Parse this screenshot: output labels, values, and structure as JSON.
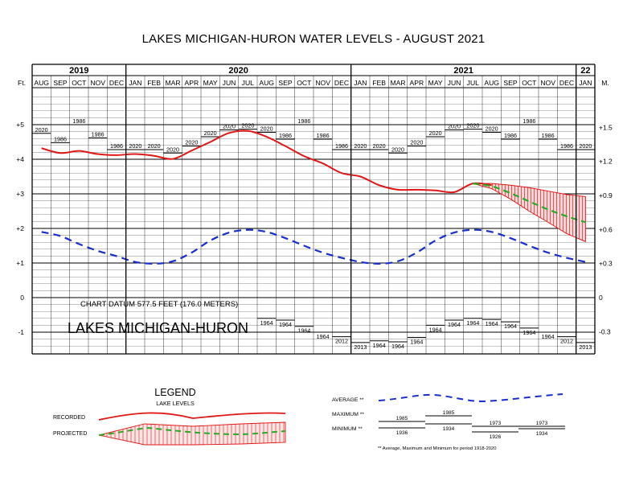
{
  "title": "LAKES MICHIGAN-HURON WATER LEVELS - AUGUST 2021",
  "years": [
    "2019",
    "2020",
    "2021",
    "22"
  ],
  "months": [
    "AUG",
    "SEP",
    "OCT",
    "NOV",
    "DEC",
    "JAN",
    "FEB",
    "MAR",
    "APR",
    "MAY",
    "JUN",
    "JUL",
    "AUG",
    "SEP",
    "OCT",
    "NOV",
    "DEC",
    "JAN",
    "FEB",
    "MAR",
    "APR",
    "MAY",
    "JUN",
    "JUL",
    "AUG",
    "SEP",
    "OCT",
    "NOV",
    "DEC",
    "JAN"
  ],
  "ft_label": "Ft.",
  "m_label": "M.",
  "ft_ticks": [
    {
      "v": 5,
      "label": "+5"
    },
    {
      "v": 4,
      "label": "+4"
    },
    {
      "v": 3,
      "label": "+3"
    },
    {
      "v": 2,
      "label": "+2"
    },
    {
      "v": 1,
      "label": "+1"
    },
    {
      "v": 0,
      "label": "0"
    },
    {
      "v": -1,
      "label": "-1"
    }
  ],
  "m_ticks": [
    {
      "v": 1.5,
      "label": "+1.5"
    },
    {
      "v": 1.2,
      "label": "+1.2"
    },
    {
      "v": 0.9,
      "label": "+0.9"
    },
    {
      "v": 0.6,
      "label": "+0.6"
    },
    {
      "v": 0.3,
      "label": "+0.3"
    },
    {
      "v": 0,
      "label": "0"
    },
    {
      "v": -0.3,
      "label": "-0.3"
    }
  ],
  "datum_text": "CHART DATUM  577.5 FEET (176.0 METERS)",
  "lake_name": "LAKES MICHIGAN-HURON",
  "chart_data": {
    "type": "line",
    "title": "LAKES MICHIGAN-HURON WATER LEVELS - AUGUST 2021",
    "x_unit": "month (Aug 2019 - Jan 2022)",
    "ylabel_left": "Ft.",
    "ylabel_right": "M.",
    "ylim": [
      -1.4,
      6.4
    ],
    "grid": true,
    "recorded": {
      "x": [
        0,
        1,
        2,
        3,
        4,
        5,
        6,
        7,
        8,
        9,
        10,
        11,
        12,
        13,
        14,
        15,
        16,
        17,
        18,
        19,
        20,
        21,
        22,
        23,
        24
      ],
      "y": [
        4.32,
        4.18,
        4.24,
        4.15,
        4.12,
        4.15,
        4.1,
        4.01,
        4.25,
        4.5,
        4.76,
        4.82,
        4.65,
        4.38,
        4.09,
        3.88,
        3.6,
        3.5,
        3.25,
        3.12,
        3.12,
        3.1,
        3.05,
        3.3,
        3.25
      ]
    },
    "projected": {
      "x": [
        23,
        24,
        25,
        26,
        27,
        28,
        29
      ],
      "y": [
        3.3,
        3.22,
        3.02,
        2.78,
        2.55,
        2.35,
        2.18
      ],
      "upper": [
        3.3,
        3.3,
        3.25,
        3.18,
        3.08,
        2.98,
        2.92
      ],
      "lower": [
        3.3,
        3.15,
        2.85,
        2.5,
        2.18,
        1.85,
        1.62
      ]
    },
    "average": {
      "x": [
        0,
        1,
        2,
        3,
        4,
        5,
        6,
        7,
        8,
        9,
        10,
        11,
        12,
        13,
        14,
        15,
        16,
        17,
        18,
        19,
        20,
        21,
        22,
        23,
        24,
        25,
        26,
        27,
        28,
        29
      ],
      "y": [
        1.9,
        1.78,
        1.55,
        1.35,
        1.2,
        1.03,
        0.98,
        1.05,
        1.3,
        1.65,
        1.88,
        1.96,
        1.9,
        1.72,
        1.5,
        1.3,
        1.15,
        1.03,
        0.98,
        1.05,
        1.3,
        1.65,
        1.88,
        1.96,
        1.9,
        1.72,
        1.5,
        1.3,
        1.15,
        1.03
      ]
    },
    "maximum": [
      {
        "x": 0,
        "y": 4.75,
        "label": "2020"
      },
      {
        "x": 1,
        "y": 4.48,
        "label": "1986"
      },
      {
        "x": 2,
        "y": 5.0,
        "label": "1986"
      },
      {
        "x": 3,
        "y": 4.62,
        "label": "1986"
      },
      {
        "x": 4,
        "y": 4.28,
        "label": "1986"
      },
      {
        "x": 5,
        "y": 4.28,
        "label": "2020"
      },
      {
        "x": 6,
        "y": 4.28,
        "label": "2020"
      },
      {
        "x": 7,
        "y": 4.18,
        "label": "2020"
      },
      {
        "x": 8,
        "y": 4.38,
        "label": "2020"
      },
      {
        "x": 9,
        "y": 4.65,
        "label": "2020"
      },
      {
        "x": 10,
        "y": 4.85,
        "label": "2020"
      },
      {
        "x": 11,
        "y": 4.87,
        "label": "2020"
      },
      {
        "x": 12,
        "y": 4.78,
        "label": "2020"
      },
      {
        "x": 13,
        "y": 4.58,
        "label": "1986"
      },
      {
        "x": 14,
        "y": 5.0,
        "label": "1986"
      },
      {
        "x": 15,
        "y": 4.58,
        "label": "1986"
      },
      {
        "x": 16,
        "y": 4.28,
        "label": "1986"
      },
      {
        "x": 17,
        "y": 4.28,
        "label": "2020"
      },
      {
        "x": 18,
        "y": 4.28,
        "label": "2020"
      },
      {
        "x": 19,
        "y": 4.18,
        "label": "2020"
      },
      {
        "x": 20,
        "y": 4.38,
        "label": "2020"
      },
      {
        "x": 21,
        "y": 4.65,
        "label": "2020"
      },
      {
        "x": 22,
        "y": 4.85,
        "label": "2020"
      },
      {
        "x": 23,
        "y": 4.87,
        "label": "2020"
      },
      {
        "x": 24,
        "y": 4.78,
        "label": "2020"
      },
      {
        "x": 25,
        "y": 4.58,
        "label": "1986"
      },
      {
        "x": 26,
        "y": 5.0,
        "label": "1986"
      },
      {
        "x": 27,
        "y": 4.58,
        "label": "1986"
      },
      {
        "x": 28,
        "y": 4.28,
        "label": "1986"
      },
      {
        "x": 29,
        "y": 4.28,
        "label": "2020"
      }
    ],
    "minimum": [
      {
        "x": 12,
        "y": -0.6,
        "label": "1964"
      },
      {
        "x": 13,
        "y": -0.65,
        "label": "1964"
      },
      {
        "x": 14,
        "y": -0.83,
        "label": "1964"
      },
      {
        "x": 15,
        "y": -1.0,
        "label": "1964"
      },
      {
        "x": 16,
        "y": -1.13,
        "label": "2012"
      },
      {
        "x": 17,
        "y": -1.3,
        "label": "2013"
      },
      {
        "x": 18,
        "y": -1.25,
        "label": "1964"
      },
      {
        "x": 19,
        "y": -1.28,
        "label": "1964"
      },
      {
        "x": 20,
        "y": -1.15,
        "label": "1964"
      },
      {
        "x": 21,
        "y": -0.8,
        "label": "1964"
      },
      {
        "x": 22,
        "y": -0.65,
        "label": "1964"
      },
      {
        "x": 23,
        "y": -0.6,
        "label": "1964"
      },
      {
        "x": 24,
        "y": -0.63,
        "label": "1964"
      },
      {
        "x": 25,
        "y": -0.7,
        "label": "1964"
      },
      {
        "x": 26,
        "y": -0.88,
        "label": "1964"
      },
      {
        "x": 27,
        "y": -1.0,
        "label": "1964"
      },
      {
        "x": 28,
        "y": -1.13,
        "label": "2012"
      },
      {
        "x": 29,
        "y": -1.3,
        "label": "2013"
      }
    ]
  },
  "legend": {
    "title": "LEGEND",
    "subtitle": "LAKE LEVELS",
    "recorded_label": "RECORDED",
    "projected_label": "PROJECTED",
    "average_label": "AVERAGE **",
    "maximum_label": "MAXIMUM **",
    "minimum_label": "MINIMUM **",
    "max_years": [
      "1985",
      "1985",
      "1973",
      "1973"
    ],
    "min_years": [
      "1936",
      "1934",
      "1926",
      "1934"
    ],
    "footnote": "** Average, Maximum and Minimum for period 1918-2020"
  },
  "colors": {
    "recorded": "#e01818",
    "projected": "#2aa829",
    "average": "#1a2fcc",
    "grid": "#000000",
    "projected_band": "#e01818"
  }
}
